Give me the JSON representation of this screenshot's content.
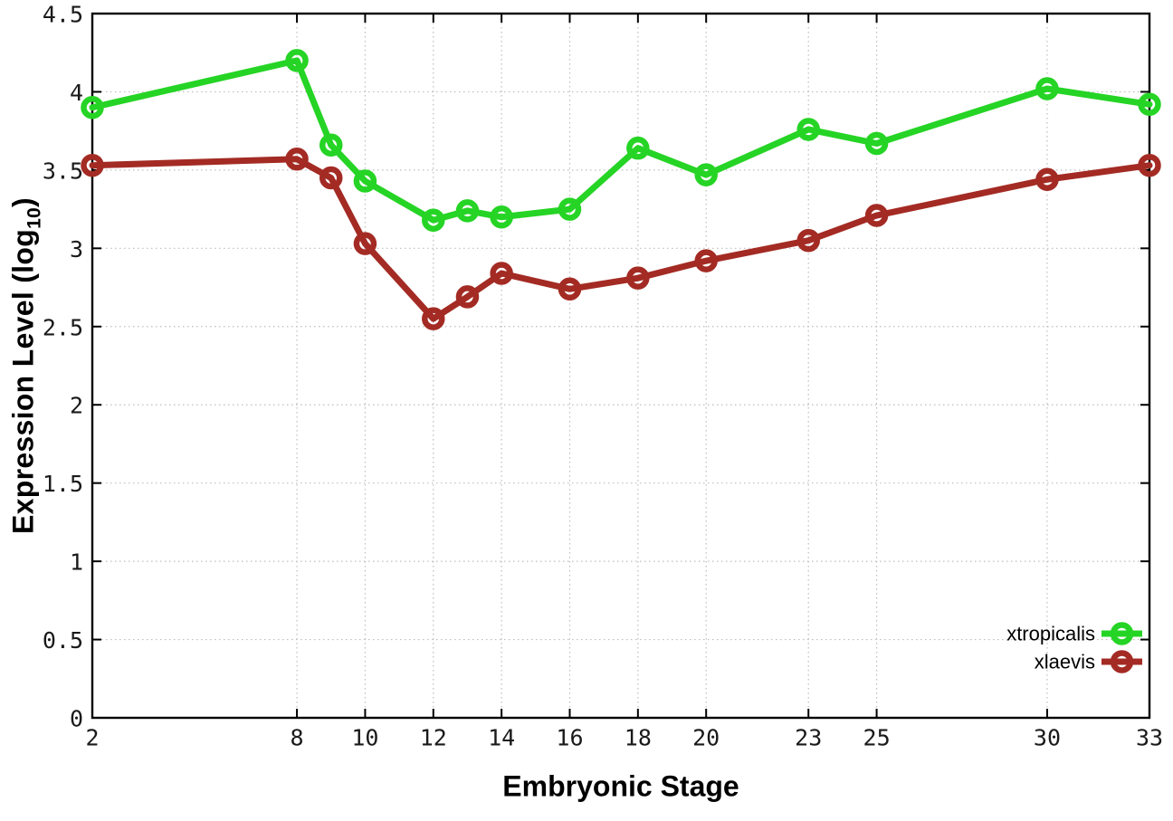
{
  "page": {
    "background": "#ffffff"
  },
  "chart_data": {
    "type": "line",
    "title": "",
    "xlabel": "Embryonic Stage",
    "ylabel": "Expression Level (log10)",
    "ylabel_parts": {
      "prefix": "Expression Level (log",
      "sub": "10",
      "suffix": ")"
    },
    "xlim": [
      2,
      33
    ],
    "ylim": [
      0,
      4.5
    ],
    "x_ticks": [
      2,
      8,
      10,
      12,
      14,
      16,
      18,
      20,
      23,
      25,
      30,
      33
    ],
    "x_tick_labels": [
      "2",
      "8",
      "10",
      "12",
      "14",
      "16",
      "18",
      "20",
      "23",
      "25",
      "30",
      "33"
    ],
    "y_ticks": [
      0,
      0.5,
      1,
      1.5,
      2,
      2.5,
      3,
      3.5,
      4,
      4.5
    ],
    "y_tick_labels": [
      "0",
      "0.5",
      "1",
      "1.5",
      "2",
      "2.5",
      "3",
      "3.5",
      "4",
      "4.5"
    ],
    "grid": true,
    "legend_position": "inside bottom-right",
    "x": [
      2,
      8,
      9,
      10,
      12,
      13,
      14,
      16,
      18,
      20,
      23,
      25,
      30,
      33
    ],
    "series": [
      {
        "name": "xtropicalis",
        "color": "#25d425",
        "values": [
          3.9,
          4.2,
          3.66,
          3.43,
          3.18,
          3.24,
          3.2,
          3.25,
          3.64,
          3.47,
          3.76,
          3.67,
          4.02,
          3.92
        ]
      },
      {
        "name": "xlaevis",
        "color": "#a32b24",
        "values": [
          3.53,
          3.57,
          3.45,
          3.03,
          2.55,
          2.69,
          2.84,
          2.74,
          2.81,
          2.92,
          3.05,
          3.21,
          3.44,
          3.53
        ]
      }
    ],
    "colors": {
      "grid": "#bdbdbd",
      "axis": "#000000",
      "tick_text": "#1a1a1a"
    }
  }
}
